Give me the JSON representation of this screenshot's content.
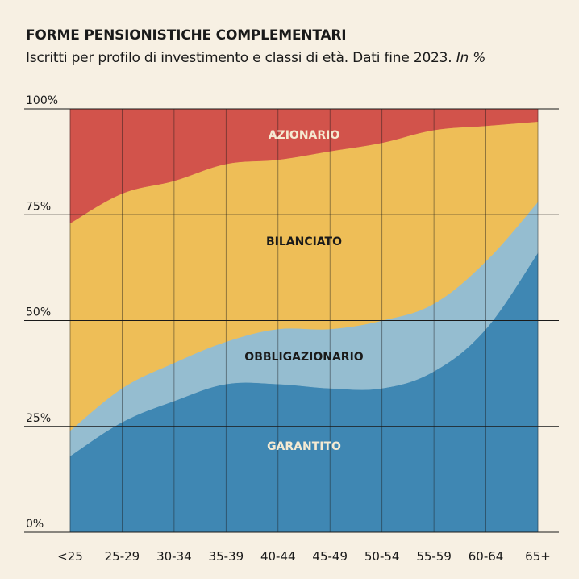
{
  "chart_data": {
    "type": "area",
    "stacked": true,
    "normalized": true,
    "title": "FORME PENSIONISTICHE COMPLEMENTARI",
    "subtitle": "Iscritti per profilo di investimento e classi di età. Dati fine 2023.",
    "unit": "In %",
    "categories": [
      "<25",
      "25-29",
      "30-34",
      "35-39",
      "40-44",
      "45-49",
      "50-54",
      "55-59",
      "60-64",
      "65+"
    ],
    "y_ticks": [
      "0%",
      "25%",
      "50%",
      "75%",
      "100%"
    ],
    "ylim": [
      0,
      100
    ],
    "grid": true,
    "series": [
      {
        "name": "GARANTITO",
        "color": "#3f87b3",
        "label_color": "#f5ead2",
        "values": [
          18,
          26,
          31,
          35,
          35,
          34,
          34,
          38,
          48,
          66
        ]
      },
      {
        "name": "OBBLIGAZIONARIO",
        "color": "#95bdd0",
        "label_color": "#1a1a1a",
        "values": [
          6,
          8,
          9,
          10,
          13,
          14,
          16,
          16,
          16,
          12
        ]
      },
      {
        "name": "BILANCIATO",
        "color": "#eebe57",
        "label_color": "#1a1a1a",
        "values": [
          49,
          46,
          43,
          42,
          40,
          42,
          42,
          41,
          32,
          19
        ]
      },
      {
        "name": "AZIONARIO",
        "color": "#d2534b",
        "label_color": "#f5ead2",
        "values": [
          27,
          20,
          17,
          13,
          12,
          10,
          8,
          5,
          4,
          3
        ]
      }
    ]
  }
}
